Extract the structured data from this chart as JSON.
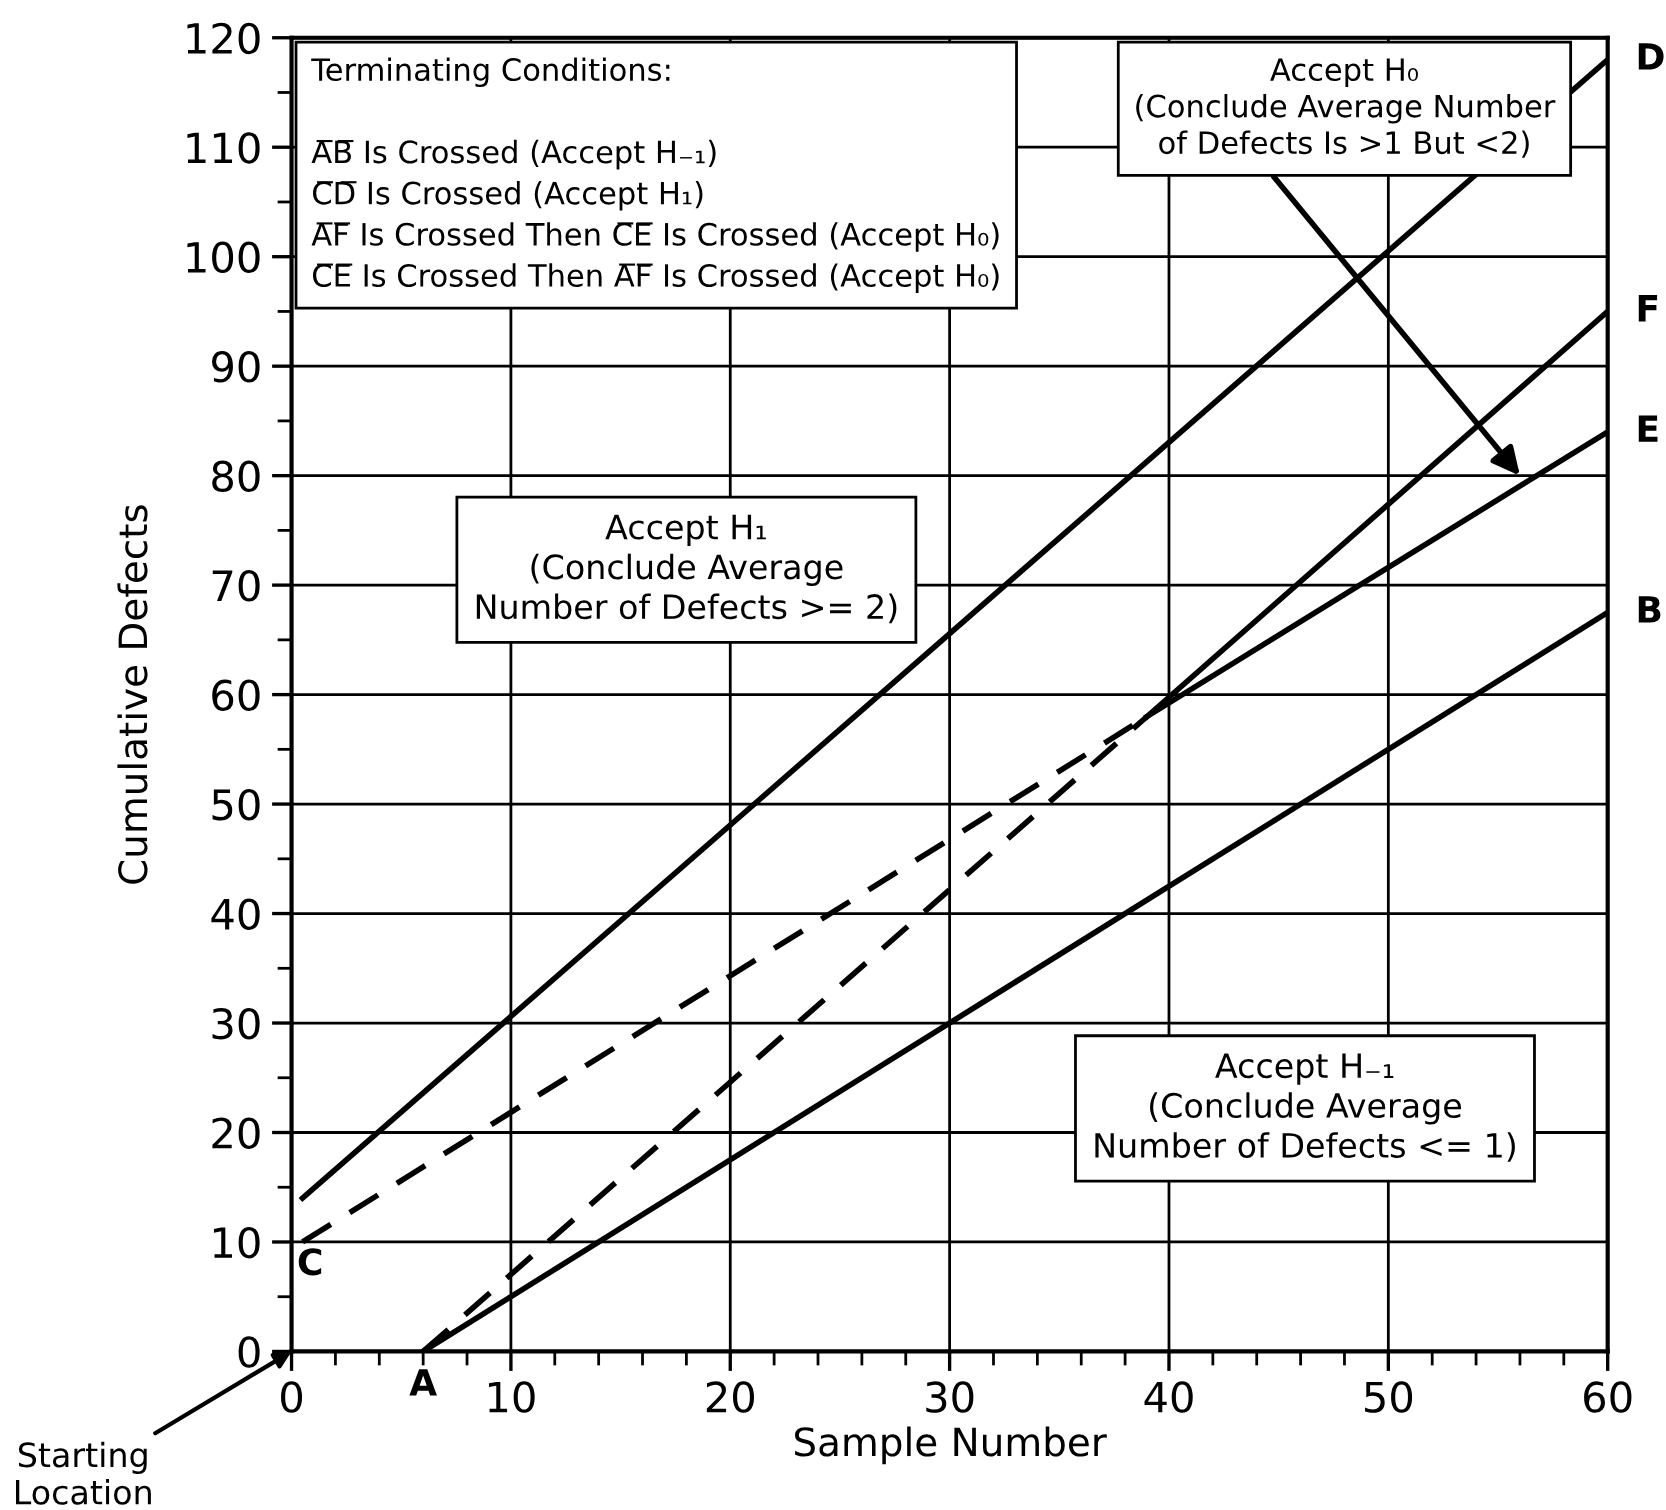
{
  "chart_data": {
    "type": "line",
    "xlabel": "Sample Number",
    "ylabel": "Cumulative Defects",
    "xlim": [
      0,
      60
    ],
    "ylim": [
      0,
      120
    ],
    "xticks": [
      0,
      10,
      20,
      30,
      40,
      50,
      60
    ],
    "yticks": [
      0,
      10,
      20,
      30,
      40,
      50,
      60,
      70,
      80,
      90,
      100,
      110,
      120
    ],
    "grid": true,
    "legend": false,
    "marker": "none",
    "series": [
      {
        "color": "#000000",
        "line_style": "solid",
        "x": [
          0.5,
          60
        ],
        "values": [
          14,
          118
        ]
      },
      {
        "color": "#000000",
        "line_style": "solid",
        "x": [
          6,
          60
        ],
        "values": [
          0,
          67.5
        ]
      },
      {
        "color": "#000000",
        "line_style": "dashed",
        "x": [
          0.5,
          39
        ],
        "values": [
          10,
          58
        ]
      },
      {
        "color": "#000000",
        "line_style": "solid",
        "x": [
          39,
          60
        ],
        "values": [
          58,
          84
        ]
      },
      {
        "color": "#000000",
        "line_style": "dashed",
        "x": [
          6,
          39
        ],
        "values": [
          0,
          58
        ]
      },
      {
        "color": "#000000",
        "line_style": "solid",
        "x": [
          39,
          60
        ],
        "values": [
          58,
          95
        ]
      }
    ],
    "annotations": [
      "Terminating Conditions:\n\nA̅B̅ Is Crossed (Accept H₋₁)\nC̅D̅ Is Crossed (Accept H₁)\nA̅F̅ Is Crossed Then C̅E̅ Is Crossed (Accept H₀)\nC̅E̅ Is Crossed Then A̅F̅ Is Crossed (Accept H₀)",
      "Accept H₁\n(Conclude Average\nNumber of Defects >= 2)",
      "Accept H₋₁\n(Conclude Average\nNumber of Defects <= 1)",
      {
        "text": "Accept H₀\n(Conclude Average Number\nof Defects Is >1 But <2)",
        "x": 56,
        "y": 80
      },
      "Starting\nLocation",
      {
        "text": "A",
        "x": 6,
        "y": 0
      },
      {
        "text": "B",
        "x": 60,
        "y": 67.5
      },
      {
        "text": "C",
        "x": 0.5,
        "y": 10
      },
      {
        "text": "D",
        "x": 60,
        "y": 118
      },
      {
        "text": "E",
        "x": 60,
        "y": 84
      },
      {
        "text": "F",
        "x": 60,
        "y": 95
      }
    ]
  }
}
